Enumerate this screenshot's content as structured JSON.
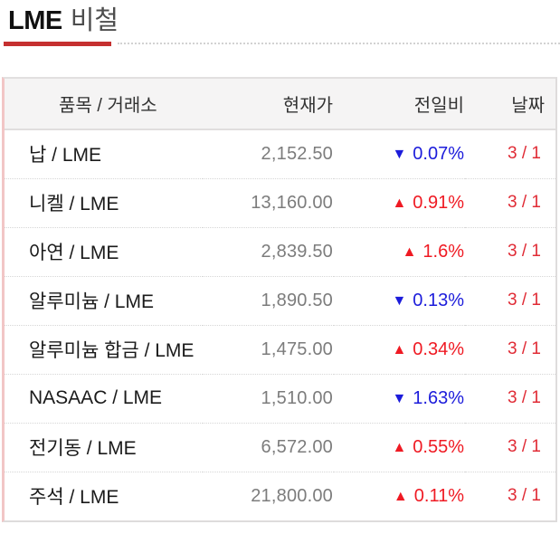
{
  "page": {
    "title_main": "LME",
    "title_sub": "비철"
  },
  "colors": {
    "accent": "#c53030",
    "up": "#ef1a23",
    "down": "#1c1cdb",
    "date-red": "#e02b35",
    "price-gray": "#7c7c7c",
    "item-dark": "#1a1a1a",
    "header-bg": "#f5f4f4",
    "border-pink": "#f2c6c6",
    "border-gray": "#dedcdc"
  },
  "table": {
    "headers": {
      "item": "품목 / 거래소",
      "price": "현재가",
      "change": "전일비",
      "date": "날짜"
    },
    "rows": [
      {
        "item": "납 / LME",
        "price": "2,152.50",
        "direction": "down",
        "arrow": "▼",
        "pct": "0.07%",
        "date": "3 / 1"
      },
      {
        "item": "니켈 / LME",
        "price": "13,160.00",
        "direction": "up",
        "arrow": "▲",
        "pct": "0.91%",
        "date": "3 / 1"
      },
      {
        "item": "아연 / LME",
        "price": "2,839.50",
        "direction": "up",
        "arrow": "▲",
        "pct": "1.6%",
        "date": "3 / 1"
      },
      {
        "item": "알루미늄 / LME",
        "price": "1,890.50",
        "direction": "down",
        "arrow": "▼",
        "pct": "0.13%",
        "date": "3 / 1"
      },
      {
        "item": "알루미늄 합금 / LME",
        "price": "1,475.00",
        "direction": "up",
        "arrow": "▲",
        "pct": "0.34%",
        "date": "3 / 1"
      },
      {
        "item": "NASAAC / LME",
        "price": "1,510.00",
        "direction": "down",
        "arrow": "▼",
        "pct": "1.63%",
        "date": "3 / 1"
      },
      {
        "item": "전기동 / LME",
        "price": "6,572.00",
        "direction": "up",
        "arrow": "▲",
        "pct": "0.55%",
        "date": "3 / 1"
      },
      {
        "item": "주석 / LME",
        "price": "21,800.00",
        "direction": "up",
        "arrow": "▲",
        "pct": "0.11%",
        "date": "3 / 1"
      }
    ]
  }
}
